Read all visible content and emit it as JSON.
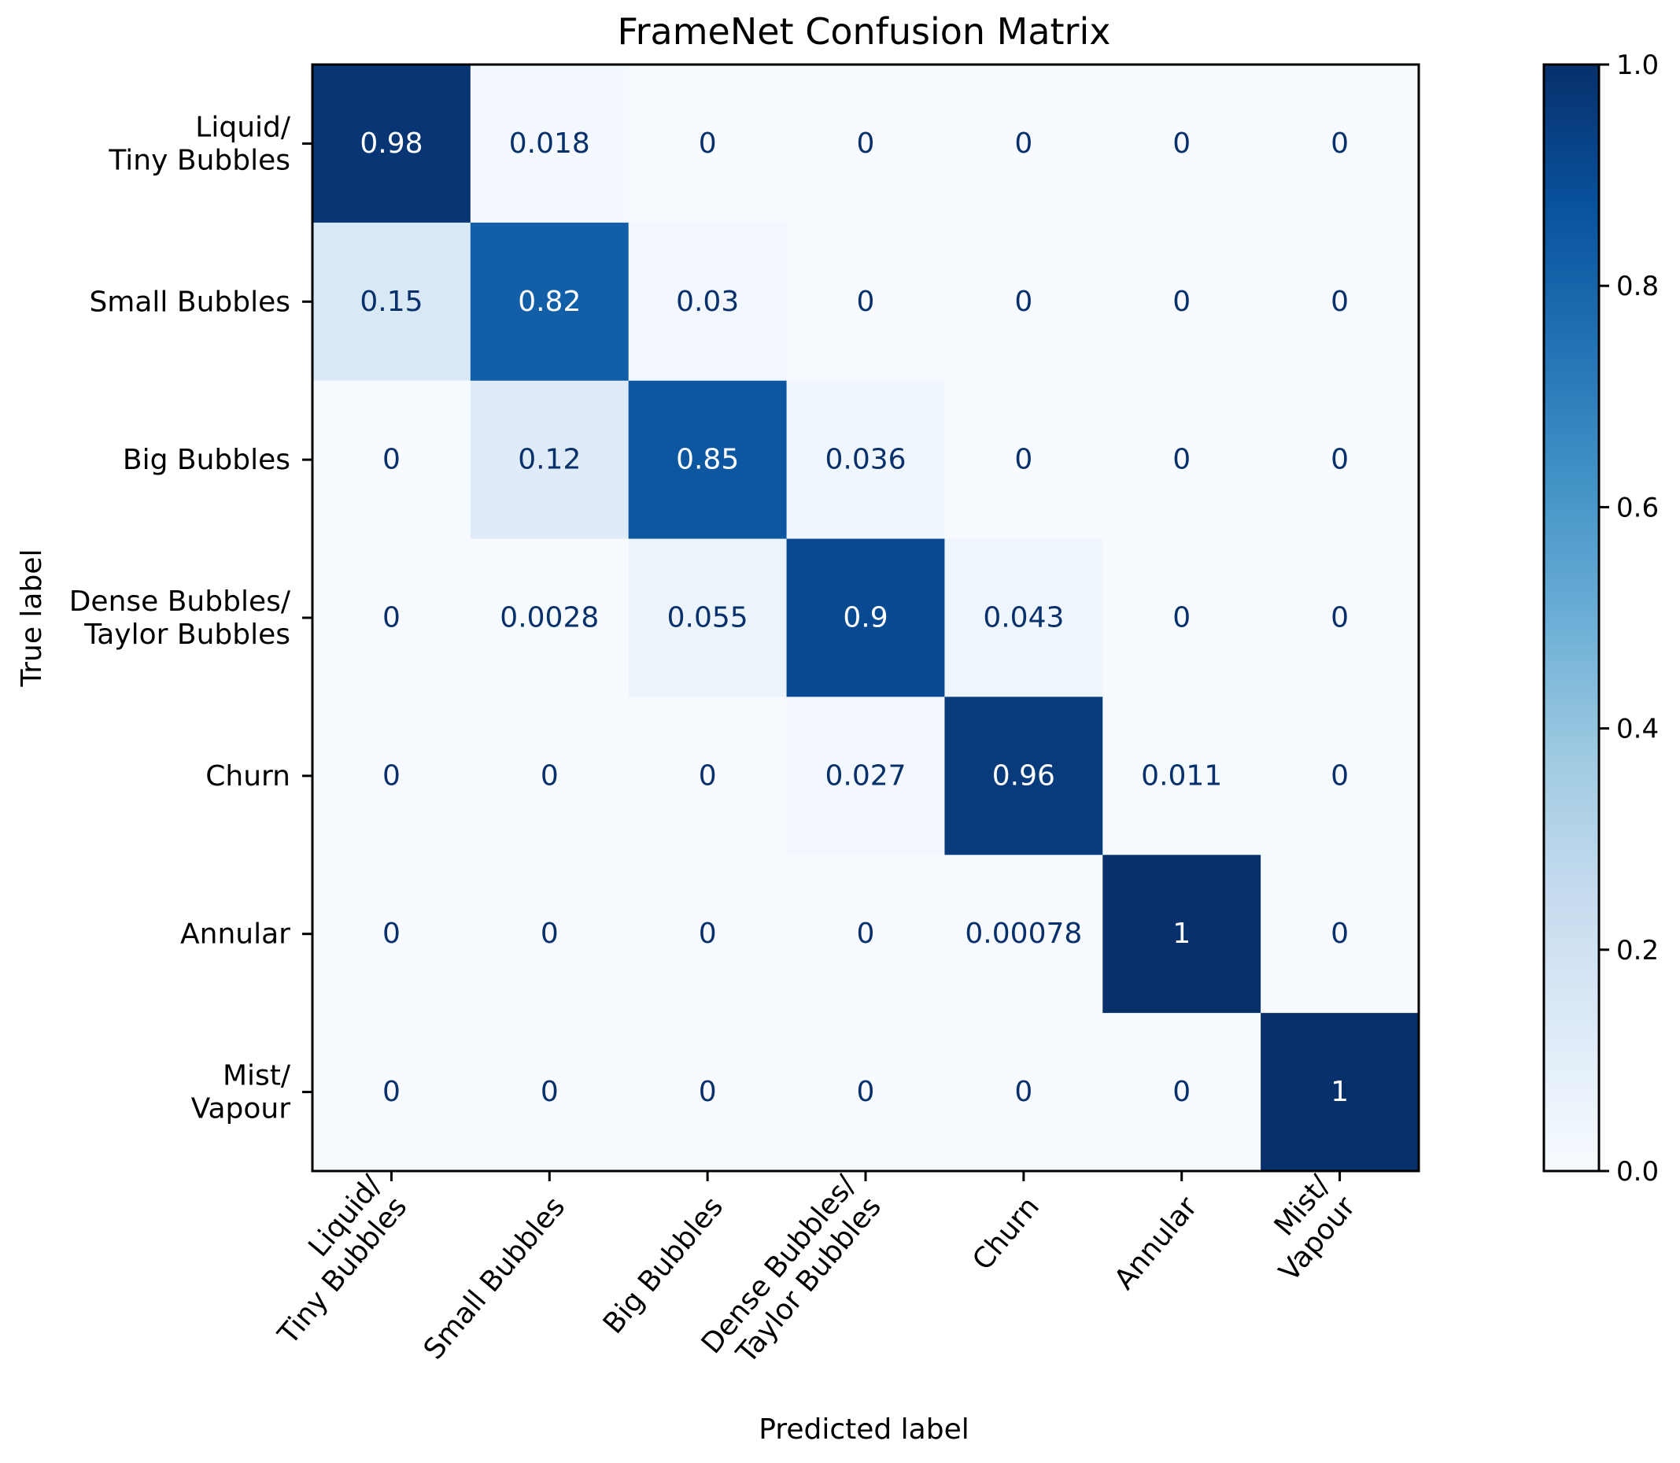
{
  "chart_data": {
    "type": "heatmap",
    "title": "FrameNet Confusion Matrix",
    "xlabel": "Predicted label",
    "ylabel": "True label",
    "categories": [
      "Liquid/\nTiny Bubbles",
      "Small Bubbles",
      "Big Bubbles",
      "Dense Bubbles/\nTaylor Bubbles",
      "Churn",
      "Annular",
      "Mist/\nVapour"
    ],
    "values": [
      [
        0.98,
        0.018,
        0,
        0,
        0,
        0,
        0
      ],
      [
        0.15,
        0.82,
        0.03,
        0,
        0,
        0,
        0
      ],
      [
        0,
        0.12,
        0.85,
        0.036,
        0,
        0,
        0
      ],
      [
        0,
        0.0028,
        0.055,
        0.9,
        0.043,
        0,
        0
      ],
      [
        0,
        0,
        0,
        0.027,
        0.96,
        0.011,
        0
      ],
      [
        0,
        0,
        0,
        0,
        0.00078,
        1,
        0
      ],
      [
        0,
        0,
        0,
        0,
        0,
        0,
        1
      ]
    ],
    "cell_labels": [
      [
        "0.98",
        "0.018",
        "0",
        "0",
        "0",
        "0",
        "0"
      ],
      [
        "0.15",
        "0.82",
        "0.03",
        "0",
        "0",
        "0",
        "0"
      ],
      [
        "0",
        "0.12",
        "0.85",
        "0.036",
        "0",
        "0",
        "0"
      ],
      [
        "0",
        "0.0028",
        "0.055",
        "0.9",
        "0.043",
        "0",
        "0"
      ],
      [
        "0",
        "0",
        "0",
        "0.027",
        "0.96",
        "0.011",
        "0"
      ],
      [
        "0",
        "0",
        "0",
        "0",
        "0.00078",
        "1",
        "0"
      ],
      [
        "0",
        "0",
        "0",
        "0",
        "0",
        "0",
        "1"
      ]
    ],
    "colormap": "Blues",
    "colorbar": {
      "range": [
        0,
        1
      ],
      "ticks": [
        0.0,
        0.2,
        0.4,
        0.6,
        0.8,
        1.0
      ],
      "tick_labels": [
        "0.0",
        "0.2",
        "0.4",
        "0.6",
        "0.8",
        "1.0"
      ]
    },
    "text_color_dark": "#08306b",
    "text_color_light": "#ffffff"
  }
}
